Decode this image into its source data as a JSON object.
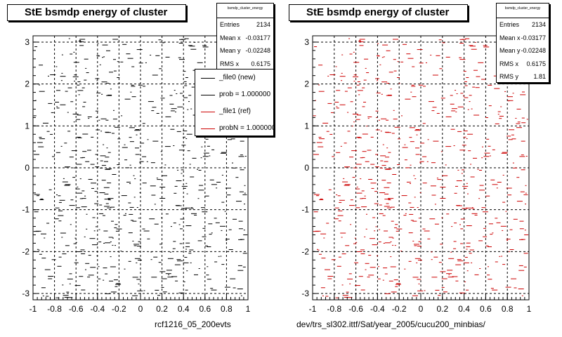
{
  "colors": {
    "file0": "#000000",
    "file1": "#cc0000"
  },
  "chart_data": [
    {
      "type": "scatter",
      "title": "StE bsmdp energy of cluster",
      "xlim": [
        -1,
        1
      ],
      "ylim": [
        -3.15,
        3.15
      ],
      "x_ticks": [
        "-1",
        "-0.8",
        "-0.6",
        "-0.4",
        "-0.2",
        "0",
        "0.2",
        "0.4",
        "0.6",
        "0.8",
        "1"
      ],
      "y_ticks": [
        "3",
        "2",
        "1",
        "0",
        "-1",
        "-2",
        "-3"
      ],
      "grid": true,
      "series": [
        {
          "name": "_file0 (new)",
          "color": "#000000"
        }
      ],
      "stats": {
        "name": "bsmdp_cluster_energy",
        "rows": [
          [
            "Entries",
            "2134"
          ],
          [
            "Mean x",
            "-0.03177"
          ],
          [
            "Mean y",
            "-0.02248"
          ],
          [
            "RMS x",
            "0.6175"
          ]
        ]
      },
      "legend": {
        "entries": [
          {
            "label": "_file0 (new)",
            "color": "#000000"
          },
          {
            "label": "prob = 1.000000",
            "color": "#000000"
          },
          {
            "label": "_file1 (ref)",
            "color": "#cc0000"
          },
          {
            "label": "probN = 1.000000",
            "color": "#cc0000"
          }
        ]
      },
      "caption": "rcf1216_05_200evts"
    },
    {
      "type": "scatter",
      "title": "StE bsmdp energy of cluster",
      "xlim": [
        -1,
        1
      ],
      "ylim": [
        -3.15,
        3.15
      ],
      "x_ticks": [
        "-1",
        "-0.8",
        "-0.6",
        "-0.4",
        "-0.2",
        "0",
        "0.2",
        "0.4",
        "0.6",
        "0.8",
        "1"
      ],
      "y_ticks": [
        "3",
        "2",
        "1",
        "0",
        "-1",
        "-2",
        "-3"
      ],
      "grid": true,
      "series": [
        {
          "name": "_file1 (ref)",
          "color": "#cc0000"
        }
      ],
      "stats": {
        "name": "bsmdp_cluster_energy",
        "rows": [
          [
            "Entries",
            "2134"
          ],
          [
            "Mean x",
            "-0.03177"
          ],
          [
            "Mean y",
            "-0.02248"
          ],
          [
            "RMS x",
            "0.6175"
          ],
          [
            "RMS y",
            "1.81"
          ]
        ]
      },
      "caption": "dev/trs_sl302.ittf/Sat/year_2005/cucu200_minbias/"
    }
  ]
}
